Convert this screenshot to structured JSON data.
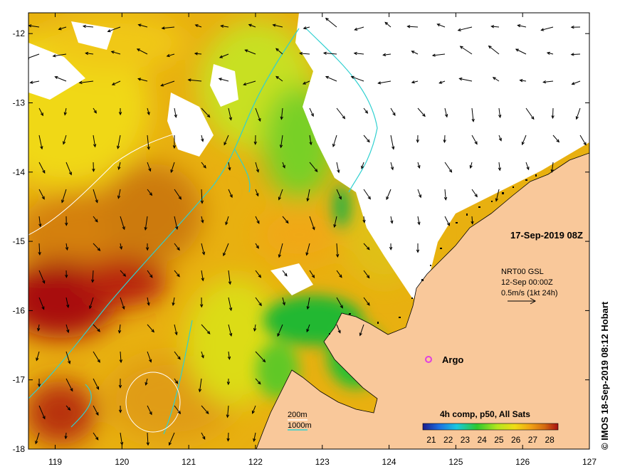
{
  "date_label": "17-Sep-2019 08Z",
  "currents": {
    "source": "NRT00 GSL",
    "time": "12-Sep 00:00Z",
    "scale": "0.5m/s (1kt 24h)"
  },
  "argo_label": "Argo",
  "depth_legend": {
    "contour_200": "200m",
    "contour_1000": "1000m"
  },
  "colorbar": {
    "title": "4h comp, p50, All Sats",
    "ticks": [
      "21",
      "22",
      "23",
      "24",
      "25",
      "26",
      "27",
      "28"
    ],
    "range": [
      21,
      28
    ],
    "colors": [
      "#1c1c8c",
      "#1e6ee0",
      "#18c8e0",
      "#2ec82e",
      "#b4e61e",
      "#f0dc14",
      "#f0a014",
      "#d46a10",
      "#a81010"
    ]
  },
  "credit": "© IMOS 18-Sep-2019 08:12 Hobart",
  "axes": {
    "lon_ticks": [
      "119",
      "120",
      "121",
      "122",
      "123",
      "124",
      "125",
      "126",
      "127"
    ],
    "lat_ticks": [
      "-12",
      "-13",
      "-14",
      "-15",
      "-16",
      "-17",
      "-18"
    ],
    "lon_range": [
      118.6,
      127
    ],
    "lat_range": [
      -11.7,
      -18
    ]
  },
  "colors": {
    "land": "#f9c89a",
    "cloud": "#ffffff",
    "contour_200": "#ffffff",
    "contour_1000": "#30d0d0",
    "argo": "#e040e0"
  }
}
